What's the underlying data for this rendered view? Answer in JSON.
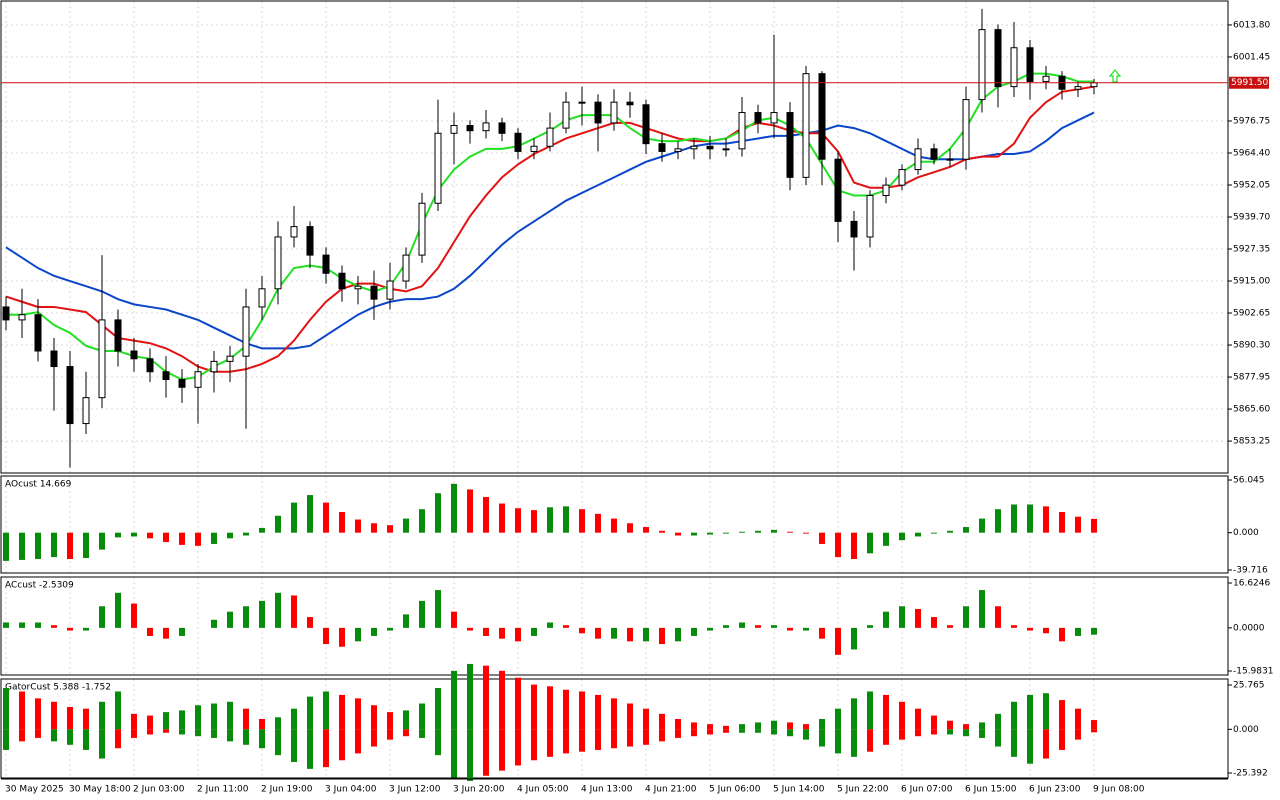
{
  "chart_data": [
    {
      "type": "candlestick",
      "categories": [
        "30 May 2025",
        null,
        null,
        null,
        "30 May 18:00",
        null,
        null,
        null,
        "2 Jun 03:00",
        null,
        null,
        null,
        "2 Jun 11:00",
        null,
        null,
        null,
        "2 Jun 19:00",
        null,
        null,
        null,
        "3 Jun 04:00",
        null,
        null,
        null,
        "3 Jun 12:00",
        null,
        null,
        null,
        "3 Jun 20:00",
        null,
        null,
        null,
        "4 Jun 05:00",
        null,
        null,
        null,
        "4 Jun 13:00",
        null,
        null,
        null,
        "4 Jun 21:00",
        null,
        null,
        null,
        "5 Jun 06:00",
        null,
        null,
        null,
        "5 Jun 14:00",
        null,
        null,
        null,
        "5 Jun 22:00",
        null,
        null,
        null,
        "6 Jun 07:00",
        null,
        null,
        null,
        "6 Jun 15:00",
        null,
        null,
        null,
        "6 Jun 23:00",
        null,
        null,
        null,
        "9 Jun 08:00"
      ],
      "open": [
        5905,
        5900,
        5902,
        5888,
        5882,
        5860,
        5870,
        5900,
        5888,
        5885,
        5880,
        5877,
        5874,
        5880,
        5884,
        5886,
        5905,
        5912,
        5932,
        5936,
        5925,
        5918,
        5912,
        5913,
        5908,
        5915,
        5925,
        5945,
        5972,
        5975,
        5973,
        5976,
        5972,
        5965,
        5967,
        5974,
        5984,
        5984,
        5976,
        5984,
        5983,
        5968,
        5965,
        5966,
        5967,
        5966,
        5966,
        5980,
        5976,
        5980,
        5955,
        5995,
        5962,
        5938,
        5932,
        5948,
        5952,
        5958,
        5966,
        5962,
        5962,
        5985,
        6012,
        5990,
        6005,
        5992,
        5994,
        5989,
        5990
      ],
      "high": [
        5909,
        5912,
        5908,
        5893,
        5888,
        5880,
        5925,
        5904,
        5893,
        5889,
        5886,
        5881,
        5883,
        5888,
        5890,
        5912,
        5917,
        5938,
        5944,
        5938,
        5928,
        5921,
        5917,
        5919,
        5922,
        5928,
        5949,
        5985,
        5980,
        5977,
        5981,
        5978,
        5974,
        5970,
        5980,
        5988,
        5990,
        5987,
        5989,
        5988,
        5985,
        5972,
        5969,
        5970,
        5971,
        5970,
        5986,
        5983,
        6010,
        5984,
        5998,
        5996,
        5965,
        5942,
        5950,
        5955,
        5960,
        5970,
        5968,
        5966,
        5990,
        6020,
        6014,
        6015,
        6008,
        5998,
        5996,
        5992,
        5993
      ],
      "low": [
        5896,
        5893,
        5884,
        5865,
        5843,
        5856,
        5866,
        5882,
        5880,
        5876,
        5870,
        5868,
        5860,
        5872,
        5876,
        5858,
        5900,
        5906,
        5928,
        5920,
        5914,
        5907,
        5906,
        5900,
        5904,
        5912,
        5922,
        5942,
        5960,
        5968,
        5970,
        5969,
        5962,
        5962,
        5965,
        5972,
        5975,
        5965,
        5973,
        5978,
        5964,
        5961,
        5962,
        5962,
        5962,
        5963,
        5963,
        5972,
        5970,
        5950,
        5952,
        5952,
        5930,
        5919,
        5928,
        5945,
        5950,
        5956,
        5960,
        5959,
        5958,
        5980,
        5982,
        5986,
        5985,
        5989,
        5985,
        5986,
        5987
      ],
      "close": [
        5900,
        5902,
        5888,
        5882,
        5860,
        5870,
        5900,
        5888,
        5885,
        5880,
        5877,
        5874,
        5880,
        5884,
        5886,
        5905,
        5912,
        5932,
        5936,
        5925,
        5918,
        5912,
        5913,
        5908,
        5915,
        5925,
        5945,
        5972,
        5975,
        5973,
        5976,
        5972,
        5965,
        5967,
        5974,
        5984,
        5984,
        5976,
        5984,
        5983,
        5968,
        5965,
        5966,
        5967,
        5966,
        5966,
        5980,
        5976,
        5980,
        5955,
        5995,
        5962,
        5938,
        5932,
        5948,
        5952,
        5958,
        5966,
        5962,
        5962,
        5985,
        6012,
        5990,
        6005,
        5992,
        5994,
        5989,
        5990,
        5991.5
      ],
      "up_color": "#ffffff",
      "down_color": "#000000",
      "lines": [
        {
          "color": "#0b45c8",
          "values": [
            5928,
            5924,
            5920,
            5917,
            5915,
            5913,
            5911,
            5908,
            5906,
            5905,
            5904,
            5902,
            5900,
            5897,
            5894,
            5891,
            5889,
            5889,
            5889,
            5890,
            5894,
            5898,
            5902,
            5905,
            5907,
            5908,
            5908,
            5909,
            5912,
            5917,
            5923,
            5929,
            5934,
            5938,
            5942,
            5946,
            5949,
            5952,
            5955,
            5958,
            5961,
            5963,
            5965,
            5967,
            5968,
            5968,
            5969,
            5970,
            5971,
            5971,
            5972,
            5973,
            5975,
            5974,
            5972,
            5969,
            5966,
            5963,
            5962,
            5962,
            5962,
            5963,
            5964,
            5964,
            5965,
            5969,
            5974,
            5977,
            5980
          ]
        },
        {
          "color": "#e31212",
          "values": [
            5909,
            5907,
            5905,
            5905,
            5904,
            5903,
            5898,
            5893,
            5892,
            5891,
            5889,
            5886,
            5882,
            5880,
            5880,
            5881,
            5883,
            5886,
            5892,
            5900,
            5907,
            5912,
            5914,
            5914,
            5912,
            5911,
            5913,
            5920,
            5930,
            5940,
            5948,
            5955,
            5960,
            5964,
            5967,
            5970,
            5972,
            5974,
            5976,
            5976,
            5974,
            5972,
            5970,
            5969,
            5969,
            5970,
            5974,
            5976,
            5975,
            5973,
            5972,
            5972,
            5965,
            5953,
            5951,
            5951,
            5952,
            5955,
            5957,
            5959,
            5962,
            5963,
            5963,
            5968,
            5978,
            5984,
            5988,
            5989,
            5990
          ]
        },
        {
          "color": "#22e022",
          "values": [
            5902,
            5902,
            5903,
            5898,
            5895,
            5890,
            5888,
            5888,
            5886,
            5885,
            5880,
            5877,
            5878,
            5882,
            5885,
            5890,
            5900,
            5912,
            5920,
            5921,
            5920,
            5916,
            5913,
            5911,
            5913,
            5922,
            5937,
            5950,
            5958,
            5963,
            5966,
            5966,
            5967,
            5970,
            5973,
            5977,
            5979,
            5979,
            5979,
            5974,
            5970,
            5969,
            5969,
            5970,
            5969,
            5970,
            5973,
            5977,
            5978,
            5975,
            5970,
            5960,
            5950,
            5948,
            5948,
            5950,
            5957,
            5961,
            5961,
            5966,
            5974,
            5985,
            5990,
            5992,
            5995,
            5995,
            5994,
            5992,
            5992
          ]
        }
      ],
      "price_line": 5991.5,
      "price_label": "5991.50",
      "price_color": "#c81010",
      "ylim": [
        5840.93,
        6023.04
      ],
      "yticks": [
        {
          "value": 6013.8,
          "label": "6013.80"
        },
        {
          "value": 6001.45,
          "label": "6001.45"
        },
        {
          "value": 5976.75,
          "label": "5976.75"
        },
        {
          "value": 5964.4,
          "label": "5964.40"
        },
        {
          "value": 5952.05,
          "label": "5952.05"
        },
        {
          "value": 5939.7,
          "label": "5939.70"
        },
        {
          "value": 5927.35,
          "label": "5927.35"
        },
        {
          "value": 5915,
          "label": "5915.00"
        },
        {
          "value": 5902.65,
          "label": "5902.65"
        },
        {
          "value": 5890.3,
          "label": "5890.30"
        },
        {
          "value": 5877.95,
          "label": "5877.95"
        },
        {
          "value": 5865.6,
          "label": "5865.60"
        },
        {
          "value": 5853.25,
          "label": "5853.25"
        }
      ],
      "grid": true
    },
    {
      "type": "histogram",
      "title": "AOcust 14.669",
      "values": [
        -30,
        -29,
        -28,
        -26,
        -28,
        -27,
        -18,
        -5,
        -4,
        -6,
        -10,
        -13,
        -14,
        -12,
        -6,
        -3,
        5,
        18,
        32,
        40,
        32,
        22,
        14,
        10,
        8,
        15,
        25,
        42,
        52,
        46,
        38,
        31,
        26,
        24,
        27,
        28,
        25,
        20,
        15,
        10,
        6,
        2,
        -3,
        -3,
        -2,
        -1,
        1,
        2,
        3,
        1,
        -1,
        -12,
        -26,
        -28,
        -22,
        -14,
        -8,
        -4,
        -1,
        2,
        6,
        15,
        25,
        30,
        30,
        28,
        22,
        17,
        14.669
      ],
      "up_color": "#0a8a0a",
      "down_color": "#ff0000",
      "ylim": [
        -42.9,
        60.3
      ],
      "yticks": [
        56.045,
        {
          "value": 0,
          "label": "0.000"
        },
        -39.716
      ]
    },
    {
      "type": "histogram",
      "title": "ACcust -2.5309",
      "values": [
        2,
        2,
        2,
        1,
        -1,
        -1,
        8,
        13,
        9,
        -3,
        -4,
        -3,
        0,
        3,
        6,
        8,
        10,
        13,
        12,
        4,
        -6,
        -7,
        -5,
        -3,
        -1,
        5,
        10,
        14,
        6,
        -1,
        -3,
        -4,
        -5,
        -3,
        2,
        1,
        -2,
        -4,
        -4,
        -5,
        -5,
        -6,
        -5,
        -3,
        -1,
        1,
        2,
        1,
        1,
        -1,
        -1,
        -4,
        -10,
        -8,
        1,
        6,
        8,
        7,
        4,
        1,
        8,
        14,
        8,
        1,
        -1,
        -2,
        -5,
        -3,
        -2.5309
      ],
      "up_color": "#0a8a0a",
      "down_color": "#ff0000",
      "ylim": [
        -17.47,
        18.85
      ],
      "yticks": [
        16.6246,
        {
          "value": 0,
          "label": "0.0000"
        },
        -15.9831
      ]
    },
    {
      "type": "gator",
      "title": "GatorCust 5.388 -1.752",
      "upper": [
        24,
        22,
        18,
        16,
        13,
        12,
        16,
        22,
        9,
        8,
        10,
        11,
        14,
        15,
        16,
        12,
        6,
        7,
        12,
        19,
        22,
        20,
        18,
        14,
        10,
        11,
        15,
        24,
        34,
        38,
        37,
        34,
        30,
        26,
        25,
        23,
        22,
        20,
        18,
        15,
        12,
        9,
        6,
        4,
        3,
        2,
        3,
        4,
        5,
        4,
        3,
        6,
        12,
        18,
        22,
        20,
        16,
        12,
        8,
        5,
        3,
        4,
        9,
        16,
        20,
        21,
        17,
        12,
        5.388
      ],
      "lower": [
        -12,
        -7,
        -5,
        -7,
        -9,
        -12,
        -17,
        -11,
        -5,
        -3,
        -2,
        -3,
        -4,
        -5,
        -7,
        -9,
        -11,
        -15,
        -19,
        -23,
        -22,
        -18,
        -14,
        -10,
        -6,
        -4,
        -5,
        -15,
        -28,
        -30,
        -27,
        -24,
        -21,
        -18,
        -16,
        -14,
        -13,
        -12,
        -11,
        -10,
        -9,
        -7,
        -5,
        -4,
        -3,
        -2,
        -2,
        -2,
        -3,
        -4,
        -6,
        -10,
        -14,
        -16,
        -13,
        -9,
        -6,
        -4,
        -3,
        -3,
        -4,
        -5,
        -10,
        -16,
        -20,
        -17,
        -12,
        -6,
        -1.752
      ],
      "up_color": "#0a8a0a",
      "down_color": "#ff0000",
      "ylim": [
        -28.3,
        29.25
      ],
      "yticks": [
        25.765,
        {
          "value": 0,
          "label": "0.000"
        },
        -25.392
      ]
    }
  ]
}
